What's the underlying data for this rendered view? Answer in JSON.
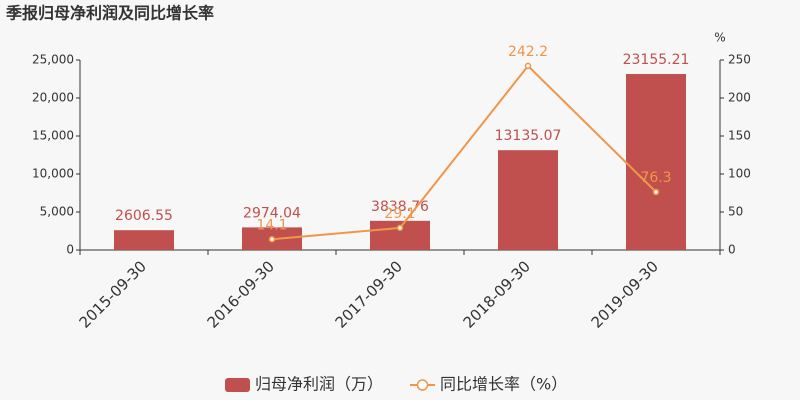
{
  "chart_data": {
    "type": "bar",
    "title": "季报归母净利润及同比增长率",
    "categories": [
      "2015-09-30",
      "2016-09-30",
      "2017-09-30",
      "2018-09-30",
      "2019-09-30"
    ],
    "series": [
      {
        "name": "归母净利润（万）",
        "type": "bar",
        "color": "#c0504d",
        "values": [
          2606.55,
          2974.04,
          3838.76,
          13135.07,
          23155.21
        ]
      },
      {
        "name": "同比增长率（%）",
        "type": "line",
        "axis": "y2",
        "color": "#f0964a",
        "values": [
          null,
          14.1,
          29.1,
          242.2,
          76.3
        ]
      }
    ],
    "ylim": [
      0,
      25000
    ],
    "yticks": [
      0,
      {
        "value": 5000,
        "label": "5,000"
      },
      {
        "value": 10000,
        "label": "10,000"
      },
      {
        "value": 15000,
        "label": "15,000"
      },
      {
        "value": 20000,
        "label": "20,000"
      },
      {
        "value": 25000,
        "label": "25,000"
      }
    ],
    "y2lim": [
      0,
      250
    ],
    "y2ticks": [
      0,
      50,
      100,
      150,
      200,
      250
    ],
    "y2_label": "%",
    "legend": "bottom"
  }
}
